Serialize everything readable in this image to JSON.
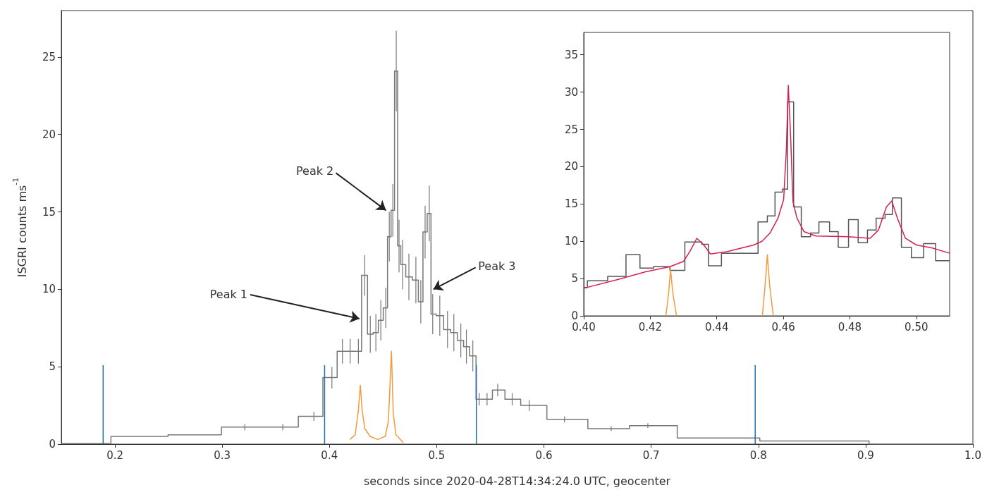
{
  "chart_data": [
    {
      "type": "step",
      "xlabel": "seconds since 2020-04-28T14:34:24.0 UTC, geocenter",
      "ylabel": "ISGRI counts ms$^{-1}$",
      "xlim": [
        0.15,
        1.0
      ],
      "ylim": [
        0,
        28
      ],
      "xticks": [
        0.2,
        0.3,
        0.4,
        0.5,
        0.6,
        0.7,
        0.8,
        0.9,
        {
          "value": 1.0,
          "label": "1.0"
        }
      ],
      "yticks": [
        0,
        5,
        10,
        15,
        20,
        25
      ],
      "grid": false,
      "annotations": [
        {
          "text": "Peak 1",
          "x": 0.428,
          "y": 8.1
        },
        {
          "text": "Peak 2",
          "x": 0.4527,
          "y": 15.1
        },
        {
          "text": "Peak 3",
          "x": 0.4969,
          "y": 10.0
        }
      ],
      "series": [
        {
          "color": "#777777",
          "x": [
            0.15,
            0.171,
            0.2215,
            0.2775,
            0.321,
            0.3565,
            0.3855,
            0.4023,
            0.4121,
            0.4193,
            0.427,
            0.4329,
            0.4381,
            0.4433,
            0.4479,
            0.4525,
            0.4558,
            0.4591,
            0.4623,
            0.4649,
            0.4682,
            0.4741,
            0.4806,
            0.4852,
            0.4892,
            0.4931,
            0.4963,
            0.5029,
            0.5101,
            0.516,
            0.5225,
            0.5277,
            0.5337,
            0.5397,
            0.547,
            0.5569,
            0.5704,
            0.5863,
            0.6192,
            0.6627,
            0.6969,
            0.7517,
            0.8509,
            0.9555,
            1.0
          ],
          "values": [
            0.05,
            0.05,
            0.5,
            0.6,
            1.1,
            1.1,
            1.8,
            4.3,
            6.0,
            6.0,
            6.0,
            10.9,
            7.1,
            7.2,
            8.0,
            8.8,
            13.4,
            15.1,
            24.1,
            12.8,
            11.6,
            10.8,
            10.6,
            9.2,
            13.7,
            14.9,
            8.4,
            8.3,
            7.4,
            7.2,
            6.7,
            6.3,
            5.7,
            2.9,
            2.9,
            3.5,
            2.9,
            2.5,
            1.6,
            1.0,
            1.2,
            0.4,
            0.2,
            0.0,
            0.0
          ],
          "errors": [
            null,
            null,
            null,
            null,
            0.2,
            0.2,
            0.3,
            0.7,
            0.8,
            0.8,
            0.8,
            1.3,
            1.2,
            1.2,
            1.3,
            1.3,
            1.6,
            1.7,
            2.6,
            1.7,
            1.6,
            1.5,
            1.5,
            1.4,
            1.7,
            1.8,
            1.3,
            1.3,
            1.2,
            1.2,
            1.1,
            1.1,
            1.0,
            0.4,
            0.4,
            0.4,
            0.4,
            0.35,
            0.2,
            0.15,
            0.15,
            null,
            null,
            null,
            null
          ]
        },
        {
          "type": "line",
          "color": "#f59a3c",
          "x": [
            0.419,
            0.424,
            0.427,
            0.4288,
            0.4305,
            0.433,
            0.438,
            0.445,
            0.452,
            0.455,
            0.4578,
            0.4595,
            0.462,
            0.4689
          ],
          "values": [
            0.3,
            0.6,
            2.2,
            3.8,
            2.2,
            1.0,
            0.5,
            0.3,
            0.5,
            1.5,
            6.0,
            2.0,
            0.6,
            0.1
          ]
        },
        {
          "type": "line",
          "color": "#1f6fb4",
          "x": [
            0.189,
            0.189
          ],
          "values": [
            0,
            5.1
          ]
        },
        {
          "type": "line",
          "color": "#1f6fb4",
          "x": [
            0.3955,
            0.3955
          ],
          "values": [
            0,
            5.1
          ]
        },
        {
          "type": "line",
          "color": "#1f6fb4",
          "x": [
            0.537,
            0.537
          ],
          "values": [
            0,
            5.1
          ]
        },
        {
          "type": "line",
          "color": "#1f6fb4",
          "x": [
            0.797,
            0.797
          ],
          "values": [
            0,
            5.1
          ]
        }
      ]
    },
    {
      "type": "histogram",
      "xlim": [
        0.4,
        0.51
      ],
      "ylim": [
        0,
        38
      ],
      "xticks": [
        {
          "value": 0.4,
          "label": "0.40"
        },
        0.42,
        0.44,
        0.46,
        0.48,
        {
          "value": 0.5,
          "label": "0.50"
        }
      ],
      "yticks": [
        0,
        5,
        10,
        15,
        20,
        25,
        30,
        35
      ],
      "grid": false,
      "series": [
        {
          "color": "#555555",
          "bins": [
            0.4,
            0.4011,
            0.4072,
            0.4127,
            0.4169,
            0.421,
            0.4259,
            0.4304,
            0.4355,
            0.4375,
            0.4414,
            0.4524,
            0.4552,
            0.4575,
            0.4597,
            0.4613,
            0.4631,
            0.4654,
            0.4682,
            0.4707,
            0.4739,
            0.4765,
            0.4796,
            0.4825,
            0.4853,
            0.4879,
            0.4906,
            0.4928,
            0.4955,
            0.4985,
            0.5022,
            0.5058,
            0.51
          ],
          "values": [
            3.8,
            4.7,
            5.3,
            8.2,
            6.4,
            6.6,
            6.1,
            9.9,
            9.6,
            6.7,
            8.4,
            12.6,
            13.4,
            16.6,
            17.0,
            28.7,
            14.6,
            10.6,
            11.1,
            12.6,
            11.3,
            9.2,
            12.9,
            9.8,
            11.5,
            13.1,
            13.6,
            15.8,
            9.2,
            7.8,
            9.7,
            7.4
          ]
        },
        {
          "type": "line",
          "color": "#d6204e",
          "x": [
            0.4,
            0.4104,
            0.4186,
            0.4259,
            0.43,
            0.432,
            0.434,
            0.4361,
            0.4381,
            0.443,
            0.4511,
            0.4536,
            0.456,
            0.4584,
            0.4601,
            0.4609,
            0.4615,
            0.4622,
            0.4629,
            0.4641,
            0.4662,
            0.4698,
            0.4796,
            0.4861,
            0.4886,
            0.491,
            0.4926,
            0.4943,
            0.4967,
            0.5,
            0.5048,
            0.51
          ],
          "values": [
            3.7,
            4.9,
            5.9,
            6.6,
            7.3,
            8.7,
            10.4,
            9.5,
            8.3,
            8.6,
            9.5,
            10.0,
            11.1,
            13.1,
            15.6,
            22.2,
            30.9,
            24.0,
            15.3,
            13.1,
            11.3,
            10.7,
            10.6,
            10.4,
            11.5,
            14.6,
            15.4,
            13.1,
            10.4,
            9.5,
            9.1,
            8.4
          ]
        },
        {
          "type": "line",
          "color": "#f59a3c",
          "x": [
            0.4247,
            0.4255,
            0.4261,
            0.4268,
            0.4279
          ],
          "values": [
            0,
            3,
            6.2,
            3,
            0
          ]
        },
        {
          "type": "line",
          "color": "#f59a3c",
          "x": [
            0.4537,
            0.4545,
            0.4552,
            0.4559,
            0.457
          ],
          "values": [
            0,
            4,
            8.2,
            4,
            0
          ]
        }
      ]
    }
  ]
}
